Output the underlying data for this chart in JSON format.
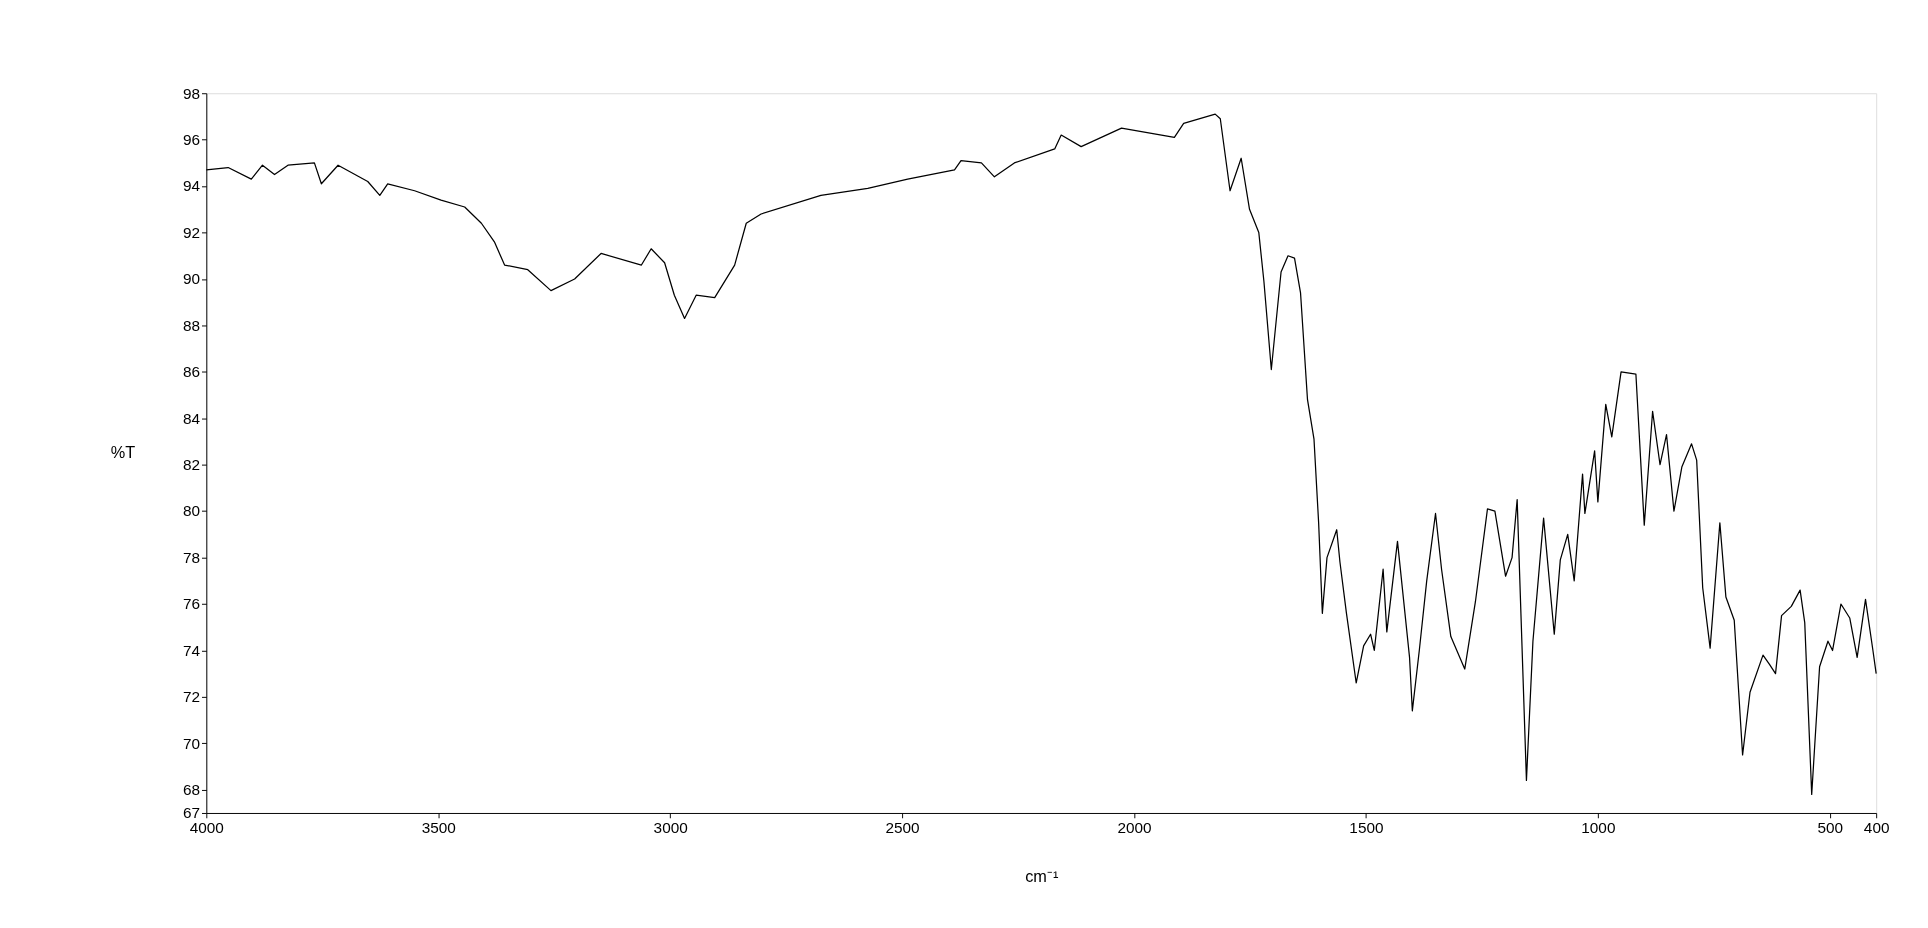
{
  "chart_data": {
    "type": "line",
    "xlabel": "cm⁻¹",
    "ylabel": "%T",
    "xlim": [
      4000,
      400
    ],
    "ylim": [
      67,
      98
    ],
    "xticks": [
      4000,
      3500,
      3000,
      2500,
      2000,
      1500,
      1000,
      500,
      400
    ],
    "yticks": [
      67,
      68,
      70,
      72,
      74,
      76,
      78,
      80,
      82,
      84,
      86,
      88,
      90,
      92,
      94,
      96,
      98
    ],
    "grid": false,
    "marker": "none",
    "line_style": "solid",
    "series": [
      {
        "color": "#000000",
        "x": [
          4000,
          3953,
          3903,
          3879,
          3853,
          3824,
          3767,
          3752,
          3716,
          3652,
          3626,
          3609,
          3551,
          3494,
          3443,
          3407,
          3379,
          3357,
          3307,
          3257,
          3206,
          3149,
          3062,
          3041,
          3012,
          2991,
          2969,
          2944,
          2904,
          2861,
          2836,
          2804,
          2675,
          2574,
          2488,
          2387,
          2373,
          2329,
          2301,
          2258,
          2171,
          2157,
          2114,
          2027,
          1913,
          1893,
          1825,
          1814,
          1793,
          1769,
          1751,
          1731,
          1720,
          1704,
          1683,
          1668,
          1654,
          1641,
          1626,
          1612,
          1602,
          1594,
          1584,
          1563,
          1556,
          1542,
          1521,
          1505,
          1490,
          1482,
          1463,
          1455,
          1432,
          1406,
          1400,
          1385,
          1369,
          1350,
          1337,
          1317,
          1287,
          1264,
          1238,
          1222,
          1199,
          1185,
          1174,
          1154,
          1140,
          1117,
          1094,
          1081,
          1065,
          1051,
          1033,
          1028,
          1007,
          1000,
          983,
          970,
          950,
          918,
          900,
          882,
          866,
          852,
          836,
          819,
          798,
          787,
          774,
          758,
          737,
          724,
          706,
          688,
          672,
          644,
          630,
          617,
          604,
          583,
          564,
          554,
          539,
          522,
          504,
          494,
          476,
          457,
          441,
          423,
          407,
          400
        ],
        "values": [
          94.7,
          94.8,
          94.3,
          94.9,
          94.5,
          94.9,
          95.0,
          94.1,
          94.9,
          94.2,
          93.6,
          94.1,
          93.8,
          93.4,
          93.1,
          92.4,
          91.6,
          90.6,
          90.4,
          89.5,
          90.0,
          91.1,
          90.6,
          91.3,
          90.7,
          89.3,
          88.3,
          89.3,
          89.2,
          90.6,
          92.4,
          92.8,
          93.6,
          93.9,
          94.3,
          94.7,
          95.1,
          95.0,
          94.4,
          95.0,
          95.6,
          96.2,
          95.7,
          96.5,
          96.1,
          96.7,
          97.1,
          96.9,
          93.8,
          95.2,
          93.0,
          92.0,
          89.9,
          86.1,
          90.3,
          91.0,
          90.9,
          89.4,
          84.8,
          83.1,
          79.5,
          75.6,
          78.0,
          79.2,
          77.8,
          75.6,
          72.6,
          74.2,
          74.7,
          74.0,
          77.5,
          74.8,
          78.7,
          73.7,
          71.4,
          74.0,
          77.0,
          79.9,
          77.5,
          74.6,
          73.2,
          76.1,
          80.1,
          80.0,
          77.2,
          78.0,
          80.5,
          68.4,
          74.4,
          79.7,
          74.7,
          77.9,
          79.0,
          77.0,
          81.6,
          79.9,
          82.6,
          80.4,
          84.6,
          83.2,
          86.0,
          85.9,
          79.4,
          84.3,
          82.0,
          83.3,
          80.0,
          81.9,
          82.9,
          82.2,
          76.7,
          74.1,
          79.5,
          76.3,
          75.3,
          69.5,
          72.2,
          73.8,
          73.4,
          73.0,
          75.5,
          75.9,
          76.6,
          75.2,
          67.8,
          73.3,
          74.4,
          74.0,
          76.0,
          75.4,
          73.7,
          76.2,
          74.0,
          73.0
        ]
      }
    ]
  }
}
